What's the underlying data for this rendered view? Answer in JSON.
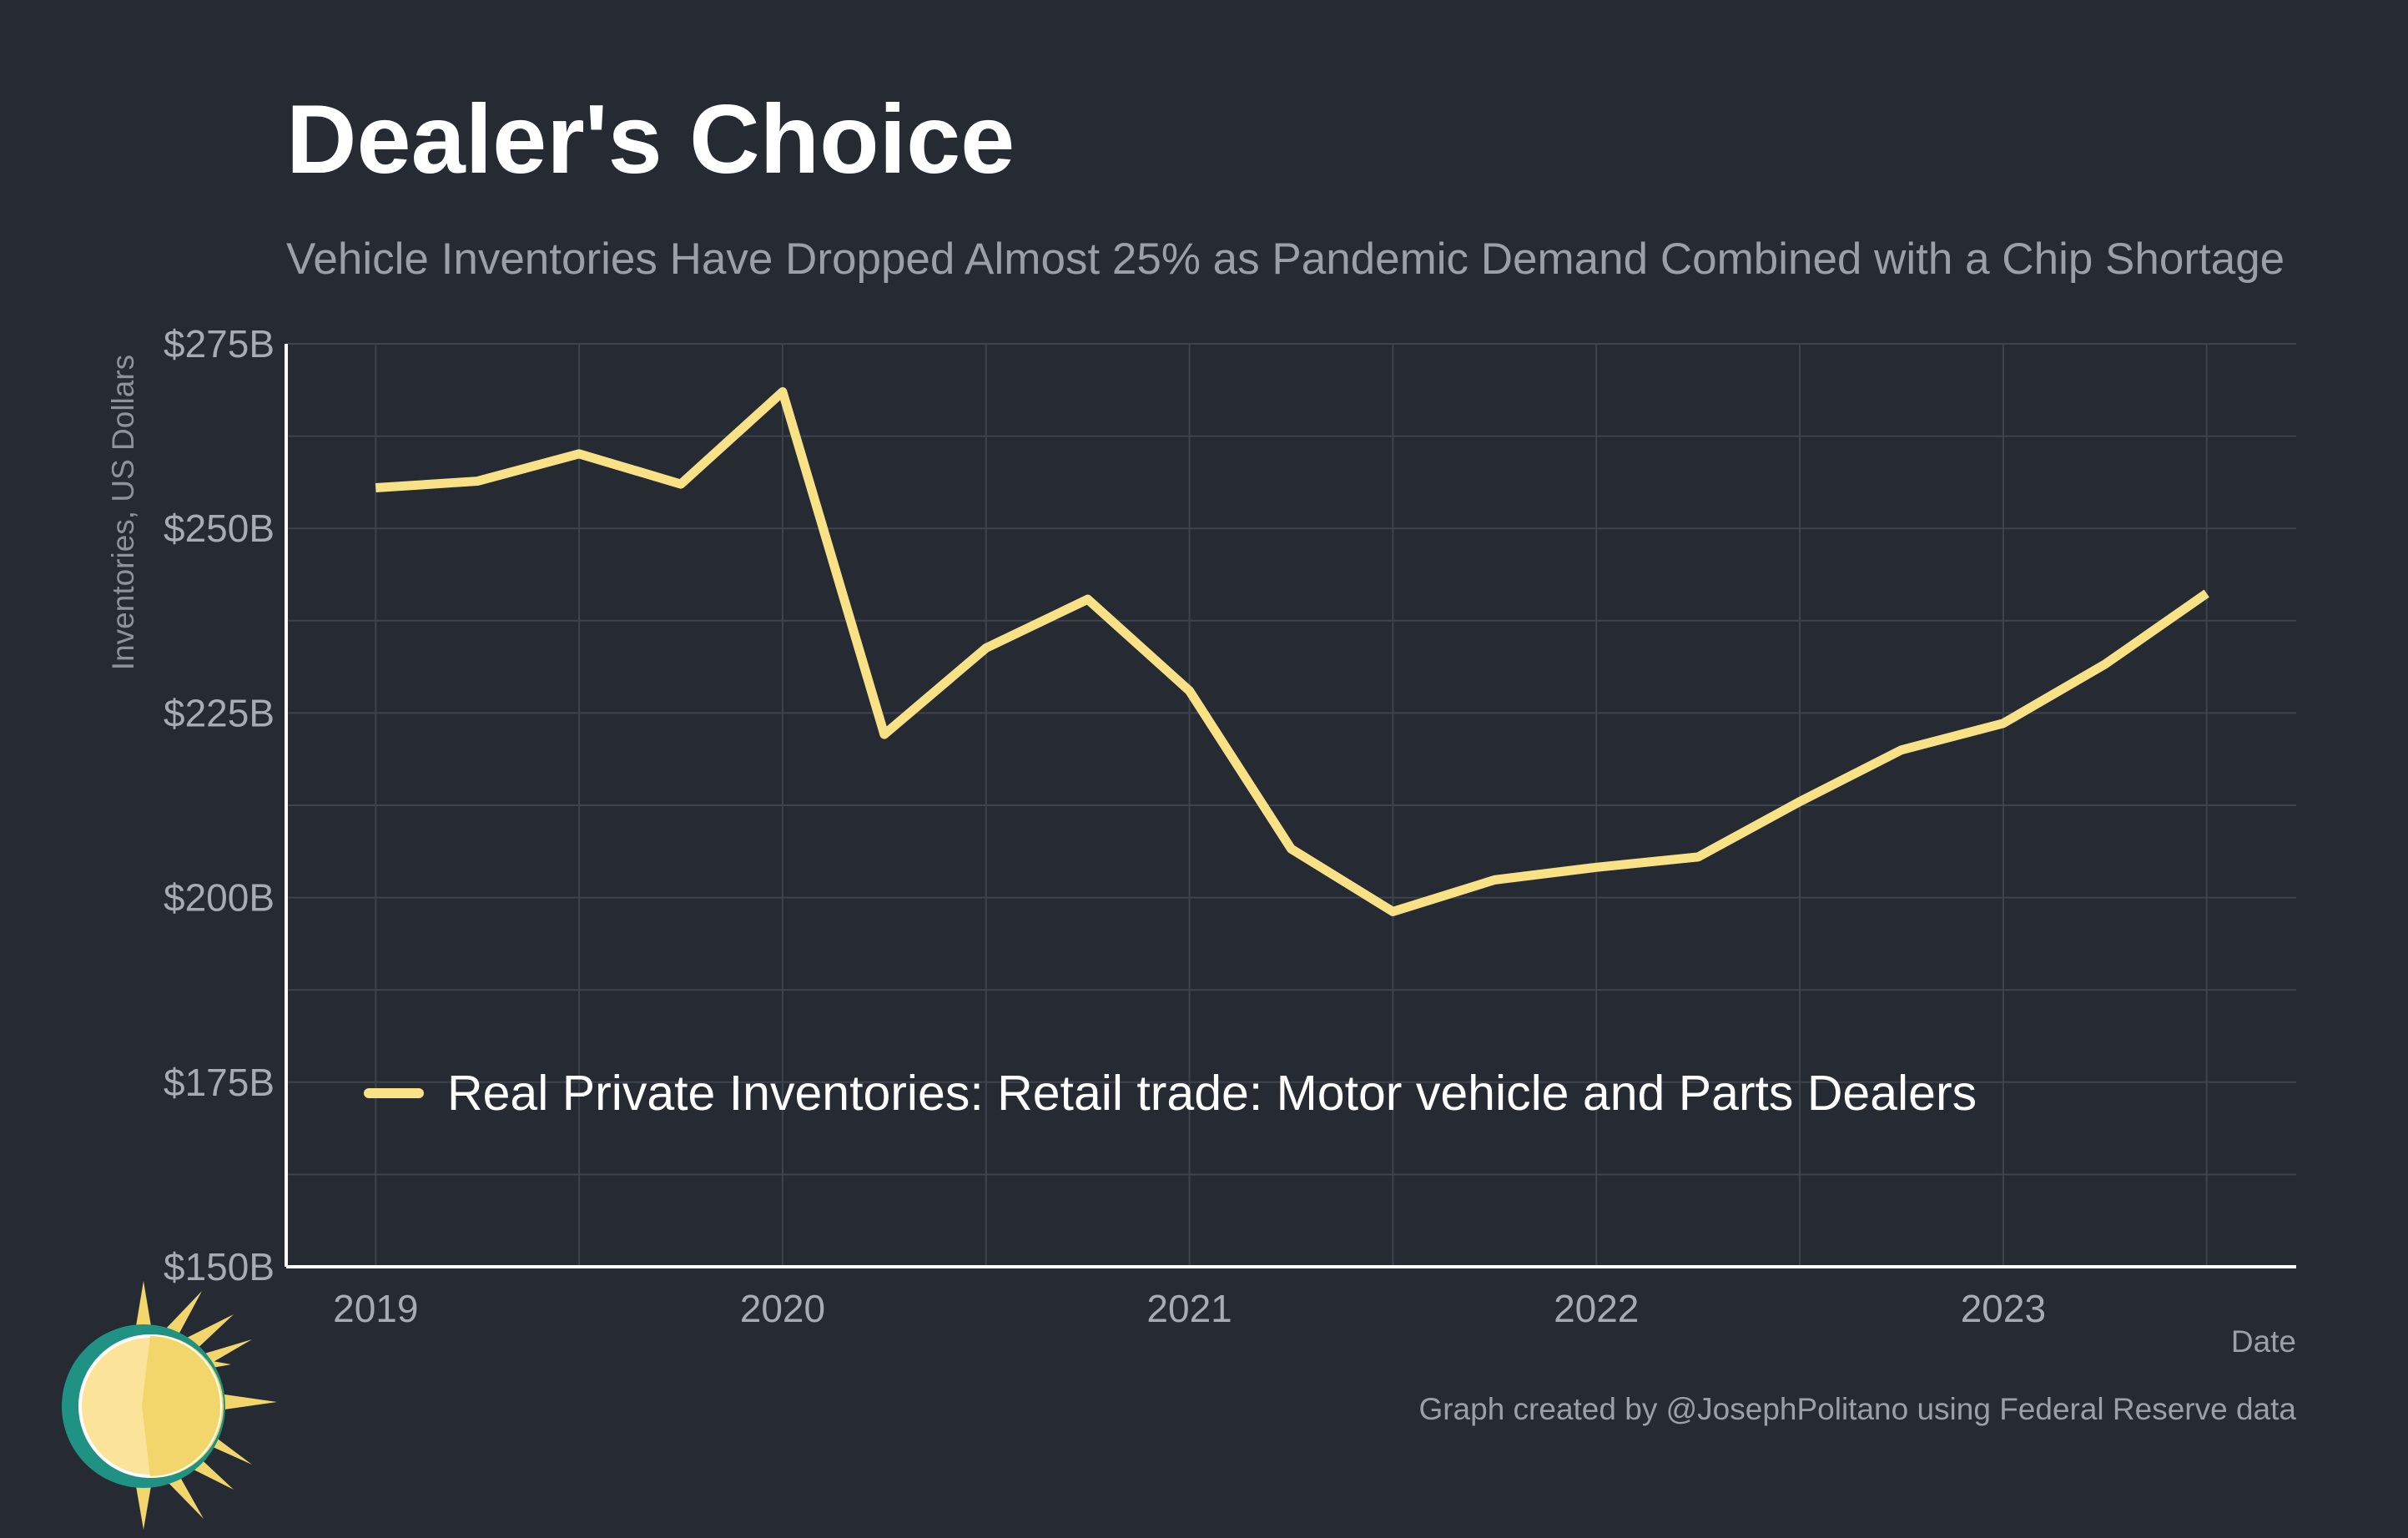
{
  "title": "Dealer's Choice",
  "subtitle": "Vehicle Inventories Have Dropped Almost 25% as Pandemic Demand Combined with a Chip Shortage",
  "credit": "Graph created by @JosephPolitano using Federal Reserve data",
  "colors": {
    "background": "#252a33",
    "line": "#f9e285",
    "grid": "#3e434d",
    "axis": "#ffffff"
  },
  "logo": {
    "icon": "sun-icon"
  },
  "chart_data": {
    "type": "line",
    "title": "Dealer's Choice",
    "subtitle": "Vehicle Inventories Have Dropped Almost 25% as Pandemic Demand Combined with a Chip Shortage",
    "xlabel": "Date",
    "ylabel": "Inventories, US Dollars",
    "ylim": [
      150,
      275
    ],
    "xlim": [
      2018.78,
      2023.72
    ],
    "y_ticks": [
      150,
      175,
      200,
      225,
      250,
      275
    ],
    "y_tick_labels": [
      "$150B",
      "$175B",
      "$200B",
      "$225B",
      "$250B",
      "$275B"
    ],
    "x_ticks": [
      2019,
      2020,
      2021,
      2022,
      2023
    ],
    "x_tick_labels": [
      "2019",
      "2020",
      "2021",
      "2022",
      "2023"
    ],
    "grid": true,
    "legend": "bottom-left inside",
    "series": [
      {
        "name": "Real Private Inventories: Retail trade: Motor vehicle and Parts Dealers",
        "color": "#f9e285",
        "x": [
          2019.0,
          2019.25,
          2019.5,
          2019.75,
          2020.0,
          2020.25,
          2020.5,
          2020.75,
          2021.0,
          2021.25,
          2021.5,
          2021.75,
          2022.0,
          2022.25,
          2022.5,
          2022.75,
          2023.0,
          2023.25,
          2023.5
        ],
        "values": [
          255.5,
          256.4,
          260.1,
          256.0,
          268.5,
          222.1,
          233.8,
          240.4,
          228.0,
          206.6,
          198.1,
          202.4,
          204.1,
          205.5,
          213.0,
          220.0,
          223.6,
          231.6,
          241.2
        ]
      }
    ]
  }
}
